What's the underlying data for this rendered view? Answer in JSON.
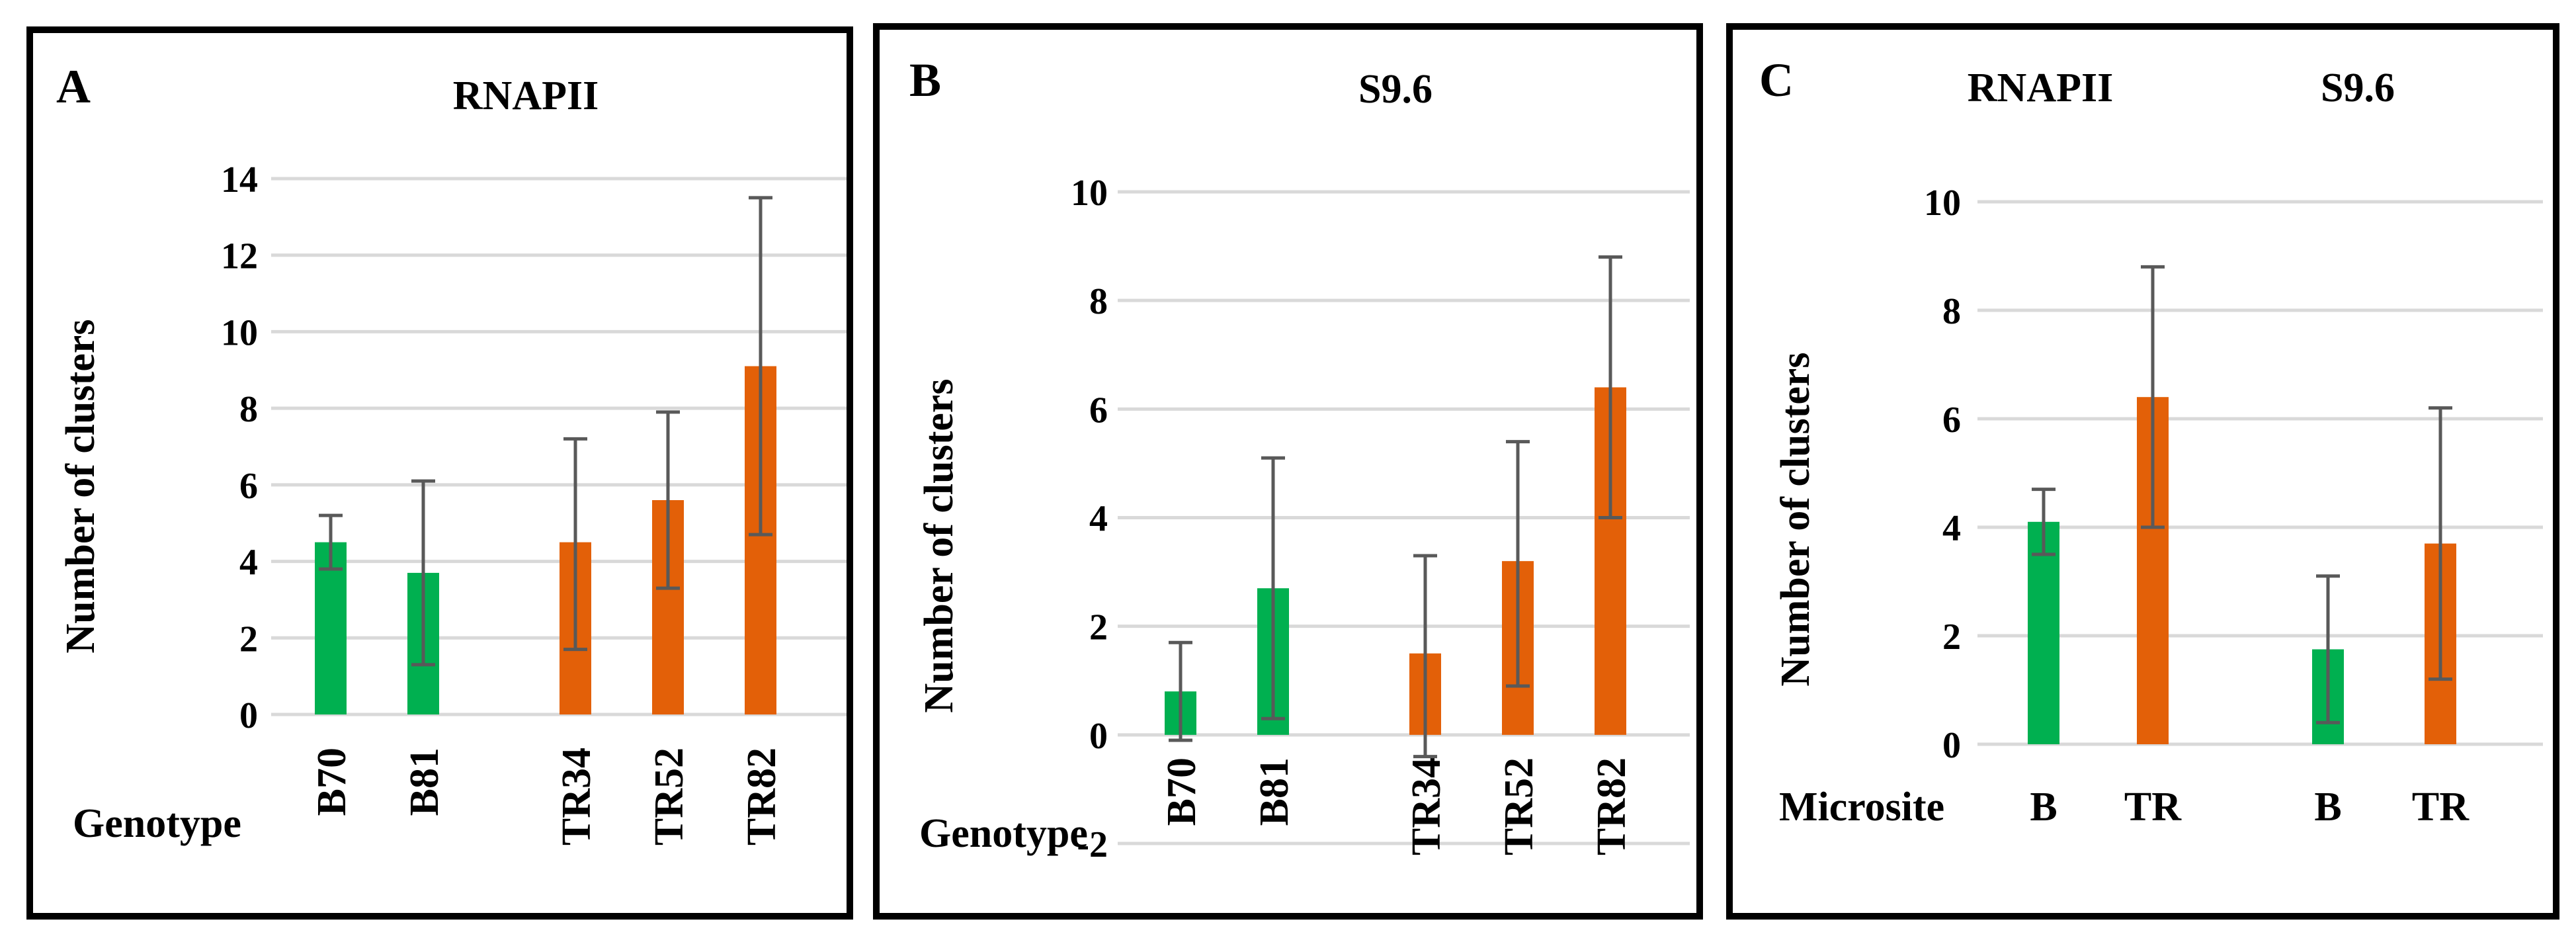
{
  "colors": {
    "green": "#00B050",
    "orange": "#E36008",
    "grid": "#D9D9D9",
    "error": "#595959",
    "stray": "#E00000"
  },
  "chart_data": [
    {
      "panel_letter": "A",
      "type": "bar",
      "title": "RNAPII",
      "ylabel": "Number of clusters",
      "xlabel": "Genotype",
      "ylim": [
        0,
        14
      ],
      "yticks": [
        0,
        2,
        4,
        6,
        8,
        10,
        12,
        14
      ],
      "categories": [
        "B70",
        "B81",
        "",
        "TR34",
        "TR52",
        "TR82"
      ],
      "values": [
        4.5,
        3.7,
        null,
        4.5,
        5.6,
        9.1
      ],
      "error_low": [
        3.8,
        1.3,
        null,
        1.7,
        3.3,
        4.7
      ],
      "error_high": [
        5.2,
        6.1,
        null,
        7.2,
        7.9,
        13.5
      ],
      "bar_colors": [
        "green",
        "green",
        null,
        "orange",
        "orange",
        "orange"
      ]
    },
    {
      "panel_letter": "B",
      "type": "bar",
      "title": "S9.6",
      "ylabel": "Number of clusters",
      "xlabel": "Genotype",
      "ylim": [
        -2,
        10
      ],
      "yticks": [
        0,
        2,
        4,
        6,
        8,
        10
      ],
      "stray_tick": "-2",
      "categories": [
        "B70",
        "B81",
        "",
        "TR34",
        "TR52",
        "TR82"
      ],
      "values": [
        0.8,
        2.7,
        null,
        1.5,
        3.2,
        6.4
      ],
      "error_low": [
        -0.1,
        0.3,
        null,
        -0.4,
        0.9,
        4.0
      ],
      "error_high": [
        1.7,
        5.1,
        null,
        3.3,
        5.4,
        8.8
      ],
      "bar_colors": [
        "green",
        "green",
        null,
        "orange",
        "orange",
        "orange"
      ]
    },
    {
      "panel_letter": "C",
      "type": "bar",
      "titles": [
        "RNAPII",
        "S9.6"
      ],
      "ylabel": "Number of clusters",
      "xlabel": "Microsite",
      "ylim": [
        0,
        10
      ],
      "yticks": [
        0,
        2,
        4,
        6,
        8,
        10
      ],
      "categories": [
        "B",
        "TR",
        "",
        "B",
        "TR"
      ],
      "values": [
        4.1,
        6.4,
        null,
        1.75,
        3.7
      ],
      "error_low": [
        3.5,
        4.0,
        null,
        0.4,
        1.2
      ],
      "error_high": [
        4.7,
        8.8,
        null,
        3.1,
        6.2
      ],
      "bar_colors": [
        "green",
        "orange",
        null,
        "green",
        "orange"
      ]
    }
  ]
}
